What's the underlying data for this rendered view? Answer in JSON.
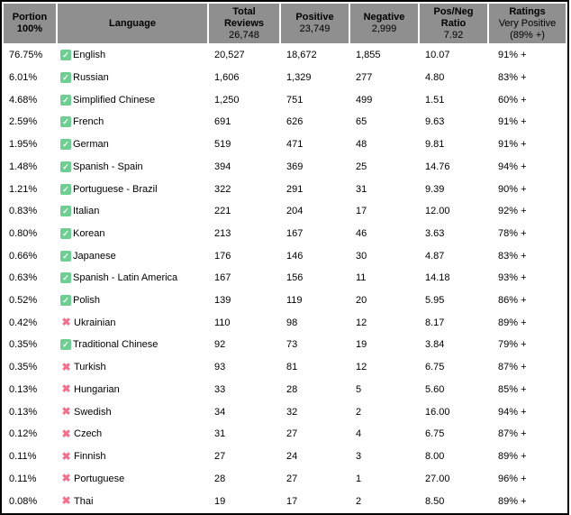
{
  "table": {
    "header": {
      "portion": {
        "line1": "Portion",
        "line2": "100%"
      },
      "language": {
        "line1": "Language"
      },
      "total": {
        "line1": "Total",
        "line2": "Reviews",
        "value": "26,748"
      },
      "positive": {
        "line1": "Positive",
        "value": "23,749"
      },
      "negative": {
        "line1": "Negative",
        "value": "2,999"
      },
      "ratio": {
        "line1": "Pos/Neg",
        "line2": "Ratio",
        "value": "7.92"
      },
      "ratings": {
        "line1": "Ratings",
        "line2": "Very Positive",
        "line3": "(89% +)"
      }
    },
    "rows": [
      {
        "portion": "76.75%",
        "icon": "check",
        "language": "English",
        "total": "20,527",
        "positive": "18,672",
        "negative": "1,855",
        "ratio": "10.07",
        "rating": "91% +"
      },
      {
        "portion": "6.01%",
        "icon": "check",
        "language": "Russian",
        "total": "1,606",
        "positive": "1,329",
        "negative": "277",
        "ratio": "4.80",
        "rating": "83% +"
      },
      {
        "portion": "4.68%",
        "icon": "check",
        "language": "Simplified Chinese",
        "total": "1,250",
        "positive": "751",
        "negative": "499",
        "ratio": "1.51",
        "rating": "60% +"
      },
      {
        "portion": "2.59%",
        "icon": "check",
        "language": "French",
        "total": "691",
        "positive": "626",
        "negative": "65",
        "ratio": "9.63",
        "rating": "91% +"
      },
      {
        "portion": "1.95%",
        "icon": "check",
        "language": "German",
        "total": "519",
        "positive": "471",
        "negative": "48",
        "ratio": "9.81",
        "rating": "91% +"
      },
      {
        "portion": "1.48%",
        "icon": "check",
        "language": "Spanish - Spain",
        "total": "394",
        "positive": "369",
        "negative": "25",
        "ratio": "14.76",
        "rating": "94% +"
      },
      {
        "portion": "1.21%",
        "icon": "check",
        "language": "Portuguese - Brazil",
        "total": "322",
        "positive": "291",
        "negative": "31",
        "ratio": "9.39",
        "rating": "90% +"
      },
      {
        "portion": "0.83%",
        "icon": "check",
        "language": "Italian",
        "total": "221",
        "positive": "204",
        "negative": "17",
        "ratio": "12.00",
        "rating": "92% +"
      },
      {
        "portion": "0.80%",
        "icon": "check",
        "language": "Korean",
        "total": "213",
        "positive": "167",
        "negative": "46",
        "ratio": "3.63",
        "rating": "78% +"
      },
      {
        "portion": "0.66%",
        "icon": "check",
        "language": "Japanese",
        "total": "176",
        "positive": "146",
        "negative": "30",
        "ratio": "4.87",
        "rating": "83% +"
      },
      {
        "portion": "0.63%",
        "icon": "check",
        "language": "Spanish - Latin America",
        "total": "167",
        "positive": "156",
        "negative": "11",
        "ratio": "14.18",
        "rating": "93% +"
      },
      {
        "portion": "0.52%",
        "icon": "check",
        "language": "Polish",
        "total": "139",
        "positive": "119",
        "negative": "20",
        "ratio": "5.95",
        "rating": "86% +"
      },
      {
        "portion": "0.42%",
        "icon": "cross",
        "language": "Ukrainian",
        "total": "110",
        "positive": "98",
        "negative": "12",
        "ratio": "8.17",
        "rating": "89% +"
      },
      {
        "portion": "0.35%",
        "icon": "check",
        "language": "Traditional Chinese",
        "total": "92",
        "positive": "73",
        "negative": "19",
        "ratio": "3.84",
        "rating": "79% +"
      },
      {
        "portion": "0.35%",
        "icon": "cross",
        "language": "Turkish",
        "total": "93",
        "positive": "81",
        "negative": "12",
        "ratio": "6.75",
        "rating": "87% +"
      },
      {
        "portion": "0.13%",
        "icon": "cross",
        "language": "Hungarian",
        "total": "33",
        "positive": "28",
        "negative": "5",
        "ratio": "5.60",
        "rating": "85% +"
      },
      {
        "portion": "0.13%",
        "icon": "cross",
        "language": "Swedish",
        "total": "34",
        "positive": "32",
        "negative": "2",
        "ratio": "16.00",
        "rating": "94% +"
      },
      {
        "portion": "0.12%",
        "icon": "cross",
        "language": "Czech",
        "total": "31",
        "positive": "27",
        "negative": "4",
        "ratio": "6.75",
        "rating": "87% +"
      },
      {
        "portion": "0.11%",
        "icon": "cross",
        "language": "Finnish",
        "total": "27",
        "positive": "24",
        "negative": "3",
        "ratio": "8.00",
        "rating": "89% +"
      },
      {
        "portion": "0.11%",
        "icon": "cross",
        "language": "Portuguese",
        "total": "28",
        "positive": "27",
        "negative": "1",
        "ratio": "27.00",
        "rating": "96% +"
      },
      {
        "portion": "0.08%",
        "icon": "cross",
        "language": "Thai",
        "total": "19",
        "positive": "17",
        "negative": "2",
        "ratio": "8.50",
        "rating": "89% +"
      }
    ]
  },
  "icons": {
    "check_glyph": "✓",
    "cross_glyph": "✖",
    "check_meaning": "fully-supported-language",
    "cross_meaning": "unsupported-language"
  },
  "colors": {
    "header_bg": "#8f8f8f",
    "border": "#000000",
    "check_bg": "#6fce92",
    "cross": "#f2718e",
    "row_bg": "#ffffff",
    "text": "#000000"
  }
}
